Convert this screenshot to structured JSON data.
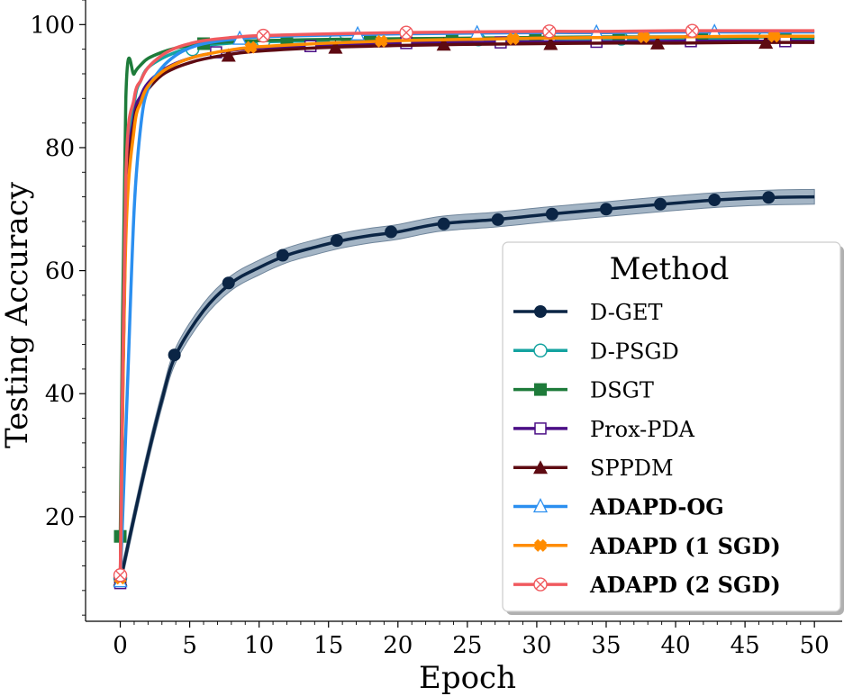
{
  "chart_data": {
    "type": "line",
    "xlabel": "Epoch",
    "ylabel": "Testing Accuracy",
    "xlim": [
      -2.5,
      52
    ],
    "ylim": [
      3,
      104
    ],
    "xticks": [
      0,
      5,
      10,
      15,
      20,
      25,
      30,
      35,
      40,
      45,
      50
    ],
    "yticks": [
      20,
      40,
      60,
      80,
      100
    ],
    "grid": false,
    "legend": {
      "title": "Method",
      "placement": "bottom-right"
    },
    "series": [
      {
        "name": "D-GET",
        "color": "#0b2545",
        "marker": "filled-circle",
        "bold": false,
        "band": 1.2,
        "x": [
          0,
          1,
          2,
          3,
          4,
          6,
          8,
          10,
          12,
          14,
          16,
          18,
          20,
          23,
          27,
          31,
          35,
          39,
          43,
          47,
          50
        ],
        "y": [
          9.5,
          20,
          30,
          39,
          46.3,
          53.5,
          58,
          60.5,
          62.5,
          63.8,
          64.9,
          65.7,
          66.3,
          67.6,
          68.3,
          69.2,
          70,
          70.8,
          71.5,
          71.9,
          72
        ]
      },
      {
        "name": "D-PSGD",
        "color": "#14a3a0",
        "marker": "hollow-circle",
        "bold": false,
        "x": [
          0,
          0.4,
          1,
          1.5,
          2,
          3,
          4,
          5,
          6,
          8,
          10,
          15,
          20,
          25,
          30,
          35,
          40,
          45,
          50
        ],
        "y": [
          10,
          70,
          87,
          91,
          93,
          94.5,
          95.5,
          96.2,
          96.6,
          97,
          97.2,
          97.4,
          97.5,
          97.6,
          97.7,
          97.7,
          97.8,
          97.8,
          97.8
        ]
      },
      {
        "name": "DSGT",
        "color": "#1e7b3a",
        "marker": "filled-square",
        "bold": false,
        "x": [
          0,
          0.4,
          1,
          1.5,
          2,
          3,
          4,
          5,
          6,
          8,
          10,
          15,
          20,
          25,
          30,
          35,
          40,
          45,
          50
        ],
        "y": [
          16.8,
          88,
          92,
          93.5,
          94.5,
          95.5,
          96.2,
          96.6,
          96.9,
          97.2,
          97.4,
          97.6,
          97.7,
          97.8,
          97.9,
          98,
          98,
          98,
          98
        ]
      },
      {
        "name": "Prox-PDA",
        "color": "#4b0f86",
        "marker": "hollow-square",
        "bold": false,
        "x": [
          0,
          0.4,
          1,
          1.5,
          2,
          3,
          4,
          5,
          6,
          8,
          10,
          15,
          20,
          25,
          30,
          35,
          40,
          45,
          50
        ],
        "y": [
          9.2,
          70,
          85,
          88.5,
          90.5,
          92.5,
          93.7,
          94.5,
          95.1,
          95.8,
          96.2,
          96.7,
          97,
          97.1,
          97.2,
          97.2,
          97.3,
          97.3,
          97.3
        ]
      },
      {
        "name": "SPPDM",
        "color": "#5e0a12",
        "marker": "filled-triangle",
        "bold": false,
        "x": [
          0,
          0.4,
          1,
          1.5,
          2,
          3,
          4,
          5,
          6,
          8,
          10,
          15,
          20,
          25,
          30,
          35,
          40,
          45,
          50
        ],
        "y": [
          9.8,
          68,
          84,
          87.5,
          89.5,
          91.8,
          93,
          93.8,
          94.4,
          95.2,
          95.7,
          96.3,
          96.6,
          96.8,
          96.9,
          97,
          97,
          97.1,
          97.1
        ]
      },
      {
        "name": "ADAPD-OG",
        "color": "#2b8ff0",
        "marker": "hollow-triangle",
        "bold": true,
        "x": [
          0,
          0.5,
          1,
          1.5,
          2,
          3,
          4,
          5,
          6,
          8,
          10,
          15,
          20,
          25,
          30,
          35,
          40,
          45,
          50
        ],
        "y": [
          9.5,
          40,
          70,
          84,
          89.5,
          93,
          95,
          96.2,
          96.9,
          97.6,
          98,
          98.3,
          98.5,
          98.6,
          98.7,
          98.7,
          98.8,
          98.8,
          98.8
        ]
      },
      {
        "name": "ADAPD (1 SGD)",
        "color": "#ff8c00",
        "marker": "filled-cross",
        "bold": true,
        "x": [
          0,
          0.4,
          1,
          1.5,
          2,
          3,
          4,
          5,
          6,
          8,
          10,
          15,
          20,
          25,
          30,
          35,
          40,
          45,
          50
        ],
        "y": [
          10,
          65,
          83,
          87.5,
          90,
          92.3,
          93.6,
          94.5,
          95.1,
          95.9,
          96.4,
          97,
          97.4,
          97.6,
          97.8,
          97.9,
          98,
          98.1,
          98.1
        ]
      },
      {
        "name": "ADAPD (2 SGD)",
        "color": "#f05a5f",
        "marker": "hollow-crossed-circle",
        "bold": true,
        "x": [
          0,
          0.4,
          1,
          1.5,
          2,
          3,
          4,
          5,
          6,
          8,
          10,
          15,
          20,
          25,
          30,
          35,
          40,
          45,
          50
        ],
        "y": [
          10.5,
          75,
          88,
          91,
          93,
          95,
          96.2,
          96.9,
          97.4,
          97.9,
          98.2,
          98.5,
          98.7,
          98.8,
          98.9,
          98.9,
          99,
          99,
          99
        ]
      }
    ],
    "marker_positions": {
      "D-GET": [
        [
          0,
          9.5
        ],
        [
          3.9,
          46.3
        ],
        [
          7.8,
          58
        ],
        [
          11.7,
          62.5
        ],
        [
          15.6,
          64.9
        ],
        [
          19.5,
          66.3
        ],
        [
          23.3,
          67.6
        ],
        [
          27.2,
          68.3
        ],
        [
          31.1,
          69.2
        ],
        [
          35,
          70
        ],
        [
          38.9,
          70.8
        ],
        [
          42.8,
          71.5
        ],
        [
          46.7,
          71.9
        ]
      ],
      "D-PSGD": [
        [
          0,
          10
        ],
        [
          5.2,
          96
        ],
        [
          10.3,
          97.2
        ],
        [
          15.5,
          97.4
        ],
        [
          20.6,
          97.5
        ],
        [
          25.8,
          97.6
        ],
        [
          30.9,
          97.7
        ],
        [
          36.1,
          97.7
        ],
        [
          41.2,
          97.8
        ],
        [
          46.4,
          97.8
        ]
      ],
      "DSGT": [
        [
          0,
          16.8
        ],
        [
          6,
          96.9
        ],
        [
          12,
          97.5
        ],
        [
          18,
          97.7
        ],
        [
          23.9,
          97.8
        ],
        [
          29.9,
          97.9
        ],
        [
          35.9,
          98
        ],
        [
          41.9,
          98
        ],
        [
          47.9,
          98
        ]
      ],
      "Prox-PDA": [
        [
          0,
          9.2
        ],
        [
          6.9,
          95.5
        ],
        [
          13.7,
          96.5
        ],
        [
          20.6,
          97
        ],
        [
          27.4,
          97.1
        ],
        [
          34.3,
          97.2
        ],
        [
          41.1,
          97.3
        ],
        [
          47.9,
          97.3
        ]
      ],
      "SPPDM": [
        [
          0,
          9.8
        ],
        [
          7.8,
          95
        ],
        [
          15.5,
          96.3
        ],
        [
          23.3,
          96.8
        ],
        [
          31,
          96.9
        ],
        [
          38.7,
          97
        ],
        [
          46.5,
          97.1
        ]
      ],
      "ADAPD-OG": [
        [
          0,
          9.5
        ],
        [
          8.6,
          97.7
        ],
        [
          17.1,
          98.4
        ],
        [
          25.7,
          98.6
        ],
        [
          34.3,
          98.7
        ],
        [
          42.8,
          98.8
        ]
      ],
      "ADAPD (1 SGD)": [
        [
          0,
          10
        ],
        [
          9.4,
          96.3
        ],
        [
          18.8,
          97.3
        ],
        [
          28.3,
          97.7
        ],
        [
          37.7,
          98
        ],
        [
          47.1,
          98.1
        ]
      ],
      "ADAPD (2 SGD)": [
        [
          0,
          10.5
        ],
        [
          10.3,
          98.2
        ],
        [
          20.6,
          98.7
        ],
        [
          30.9,
          98.9
        ],
        [
          41.2,
          99
        ]
      ]
    }
  }
}
